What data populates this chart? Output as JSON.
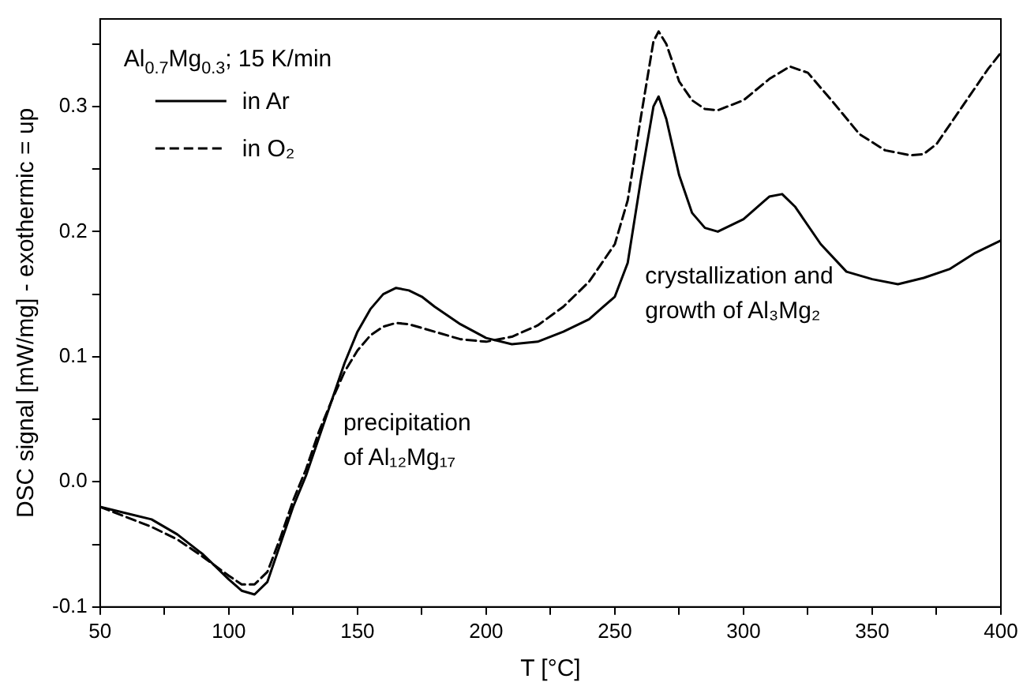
{
  "chart_data": {
    "type": "line",
    "xlabel": "T [°C]",
    "ylabel": "DSC signal [mW/mg] - exothermic = up",
    "legend_title": "Al$_{0.7}$Mg$_{0.3}$; 15 K/min",
    "legend": "top left",
    "grid": false,
    "marker": "none",
    "xlim": [
      50,
      400
    ],
    "ylim": [
      -0.1,
      0.37
    ],
    "xticks": [
      50,
      {
        "value": 75,
        "label": null
      },
      100,
      {
        "value": 125,
        "label": null
      },
      150,
      {
        "value": 175,
        "label": null
      },
      200,
      {
        "value": 225,
        "label": null
      },
      250,
      {
        "value": 275,
        "label": null
      },
      300,
      {
        "value": 325,
        "label": null
      },
      350,
      {
        "value": 375,
        "label": null
      },
      400
    ],
    "yticks": [
      -0.1,
      {
        "value": -0.05,
        "label": null
      },
      {
        "value": 0,
        "label": "0.0"
      },
      {
        "value": 0.05,
        "label": null
      },
      0.1,
      {
        "value": 0.15,
        "label": null
      },
      0.2,
      {
        "value": 0.25,
        "label": null
      },
      0.3,
      {
        "value": 0.35,
        "label": null
      }
    ],
    "annotations": [
      "precipitation\nof Al₁₂Mg₁₇",
      "crystallization and\ngrowth of Al₃Mg₂"
    ],
    "series": [
      {
        "name": "in Ar",
        "color": "#000000",
        "line_style": "solid",
        "x": [
          50,
          60,
          70,
          80,
          90,
          100,
          105,
          110,
          115,
          120,
          125,
          130,
          135,
          140,
          145,
          150,
          155,
          160,
          165,
          170,
          175,
          180,
          190,
          200,
          210,
          220,
          230,
          240,
          250,
          255,
          260,
          265,
          267,
          270,
          275,
          280,
          285,
          290,
          300,
          310,
          315,
          320,
          330,
          340,
          350,
          360,
          370,
          380,
          390,
          400
        ],
        "values": [
          -0.02,
          -0.025,
          -0.03,
          -0.042,
          -0.058,
          -0.078,
          -0.087,
          -0.09,
          -0.08,
          -0.05,
          -0.02,
          0.005,
          0.035,
          0.065,
          0.095,
          0.12,
          0.138,
          0.15,
          0.155,
          0.153,
          0.148,
          0.14,
          0.126,
          0.115,
          0.11,
          0.112,
          0.12,
          0.13,
          0.148,
          0.175,
          0.24,
          0.3,
          0.308,
          0.29,
          0.245,
          0.215,
          0.203,
          0.2,
          0.21,
          0.228,
          0.23,
          0.22,
          0.19,
          0.168,
          0.162,
          0.158,
          0.163,
          0.17,
          0.183,
          0.193
        ]
      },
      {
        "name": "in O₂",
        "color": "#000000",
        "line_style": "dashed",
        "x": [
          50,
          60,
          70,
          80,
          90,
          100,
          105,
          110,
          115,
          120,
          125,
          130,
          135,
          140,
          145,
          150,
          155,
          160,
          165,
          170,
          180,
          190,
          200,
          210,
          220,
          230,
          240,
          250,
          255,
          260,
          265,
          267,
          270,
          275,
          280,
          285,
          290,
          300,
          310,
          318,
          325,
          335,
          345,
          355,
          365,
          370,
          375,
          385,
          395,
          400
        ],
        "values": [
          -0.02,
          -0.028,
          -0.036,
          -0.046,
          -0.06,
          -0.075,
          -0.082,
          -0.082,
          -0.072,
          -0.045,
          -0.015,
          0.01,
          0.04,
          0.065,
          0.088,
          0.105,
          0.117,
          0.124,
          0.127,
          0.126,
          0.12,
          0.114,
          0.112,
          0.116,
          0.125,
          0.14,
          0.16,
          0.19,
          0.225,
          0.29,
          0.352,
          0.36,
          0.35,
          0.32,
          0.305,
          0.298,
          0.297,
          0.305,
          0.322,
          0.332,
          0.327,
          0.303,
          0.278,
          0.265,
          0.261,
          0.262,
          0.27,
          0.3,
          0.33,
          0.343
        ]
      }
    ]
  }
}
